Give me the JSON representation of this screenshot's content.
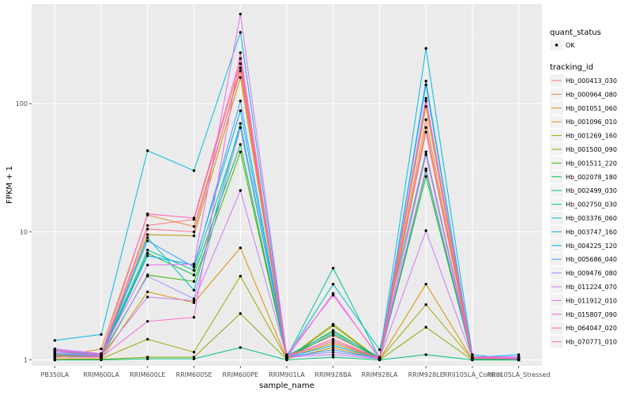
{
  "chart_data": {
    "type": "line",
    "xlabel": "sample_name",
    "ylabel": "FPKM + 1",
    "y_scale": "log10",
    "ylim": [
      0.9,
      600
    ],
    "y_ticks": [
      1,
      10,
      100
    ],
    "y_tick_labels": [
      "1",
      "10",
      "100"
    ],
    "grid": true,
    "legend_position": "right",
    "categories": [
      "PB350LA",
      "RRIM600LA",
      "RRIM600LE",
      "RRIM600SE",
      "RRIM600PE",
      "RRIM901LA",
      "RRIM928BA",
      "RRIM928LA",
      "RRIM928LE",
      "RRII105LA_Control",
      "RRII105LA_Stressed"
    ],
    "quant_status": {
      "title": "quant_status",
      "entries": [
        "OK"
      ]
    },
    "tracking_title": "tracking_id",
    "series": [
      {
        "name": "Hb_000413_030",
        "color": "#F8766D",
        "values": [
          1.18,
          1.08,
          11.2,
          12.5,
          205,
          1.08,
          1.55,
          1.04,
          75,
          1.05,
          1.02
        ]
      },
      {
        "name": "Hb_000964_080",
        "color": "#EA8331",
        "values": [
          1.05,
          1.22,
          13.5,
          11.0,
          180,
          1.06,
          1.4,
          1.03,
          65,
          1.04,
          1.01
        ]
      },
      {
        "name": "Hb_001051_060",
        "color": "#D89000",
        "values": [
          1.02,
          1.02,
          3.4,
          2.8,
          7.5,
          1.02,
          1.25,
          1.01,
          3.9,
          1.01,
          1.0
        ]
      },
      {
        "name": "Hb_001096_010",
        "color": "#C09B00",
        "values": [
          1.1,
          1.05,
          9.5,
          9.3,
          160,
          1.04,
          1.35,
          1.02,
          95,
          1.03,
          1.02
        ]
      },
      {
        "name": "Hb_001269_160",
        "color": "#A3A500",
        "values": [
          1.0,
          1.02,
          1.45,
          1.15,
          4.5,
          1.02,
          1.9,
          1.01,
          2.7,
          1.01,
          1.0
        ]
      },
      {
        "name": "Hb_001500_090",
        "color": "#7CAE00",
        "values": [
          1.0,
          1.01,
          1.05,
          1.05,
          2.3,
          1.01,
          1.85,
          1.0,
          1.8,
          1.0,
          1.0
        ]
      },
      {
        "name": "Hb_001511_220",
        "color": "#39B600",
        "values": [
          1.08,
          1.05,
          4.6,
          4.1,
          42,
          1.03,
          1.7,
          1.02,
          30,
          1.02,
          1.01
        ]
      },
      {
        "name": "Hb_002078_180",
        "color": "#00BB4E",
        "values": [
          1.12,
          1.07,
          6.8,
          4.6,
          48,
          1.04,
          1.6,
          1.02,
          27,
          1.02,
          1.01
        ]
      },
      {
        "name": "Hb_002499_030",
        "color": "#00BF7D",
        "values": [
          1.0,
          1.0,
          1.02,
          1.02,
          1.25,
          1.0,
          1.05,
          1.0,
          1.1,
          1.0,
          1.0
        ]
      },
      {
        "name": "Hb_002750_030",
        "color": "#00C1A3",
        "values": [
          1.15,
          1.1,
          7.2,
          5.0,
          65,
          1.05,
          5.2,
          1.03,
          40,
          1.03,
          1.02
        ]
      },
      {
        "name": "Hb_003376_060",
        "color": "#00BFC4",
        "values": [
          1.18,
          1.12,
          9.0,
          3.5,
          70,
          1.06,
          3.9,
          1.2,
          42,
          1.05,
          1.03
        ]
      },
      {
        "name": "Hb_003747_160",
        "color": "#00BAE0",
        "values": [
          1.42,
          1.58,
          43,
          30,
          360,
          1.08,
          1.65,
          1.05,
          270,
          1.1,
          1.0
        ]
      },
      {
        "name": "Hb_004225_120",
        "color": "#00B0F6",
        "values": [
          1.1,
          1.06,
          6.5,
          5.5,
          88,
          1.05,
          1.3,
          1.02,
          150,
          1.04,
          1.1
        ]
      },
      {
        "name": "Hb_005686_040",
        "color": "#35A2FF",
        "values": [
          1.12,
          1.08,
          8.5,
          5.3,
          105,
          1.05,
          1.2,
          1.02,
          140,
          1.04,
          1.02
        ]
      },
      {
        "name": "Hb_009476_080",
        "color": "#9590FF",
        "values": [
          1.2,
          1.1,
          4.5,
          3.0,
          65,
          1.06,
          1.15,
          1.03,
          31,
          1.05,
          1.06
        ]
      },
      {
        "name": "Hb_011224_070",
        "color": "#C77CFF",
        "values": [
          1.15,
          1.08,
          3.1,
          2.9,
          21,
          1.05,
          1.1,
          1.02,
          10.2,
          1.03,
          1.02
        ]
      },
      {
        "name": "Hb_011912_010",
        "color": "#E76BF3",
        "values": [
          1.22,
          1.12,
          5.5,
          5.6,
          500,
          1.1,
          3.2,
          1.04,
          110,
          1.06,
          1.05
        ]
      },
      {
        "name": "Hb_015807_090",
        "color": "#FA62DB",
        "values": [
          1.05,
          1.05,
          2.0,
          2.15,
          250,
          1.04,
          3.3,
          1.02,
          40,
          1.03,
          1.02
        ]
      },
      {
        "name": "Hb_064047_020",
        "color": "#FF62BC",
        "values": [
          1.18,
          1.1,
          13.8,
          12.8,
          225,
          1.07,
          1.45,
          1.03,
          105,
          1.05,
          1.03
        ]
      },
      {
        "name": "Hb_070771_010",
        "color": "#FF6C91",
        "values": [
          1.1,
          1.06,
          10.5,
          10.0,
          190,
          1.06,
          1.4,
          1.02,
          60,
          1.04,
          1.02
        ]
      }
    ]
  }
}
